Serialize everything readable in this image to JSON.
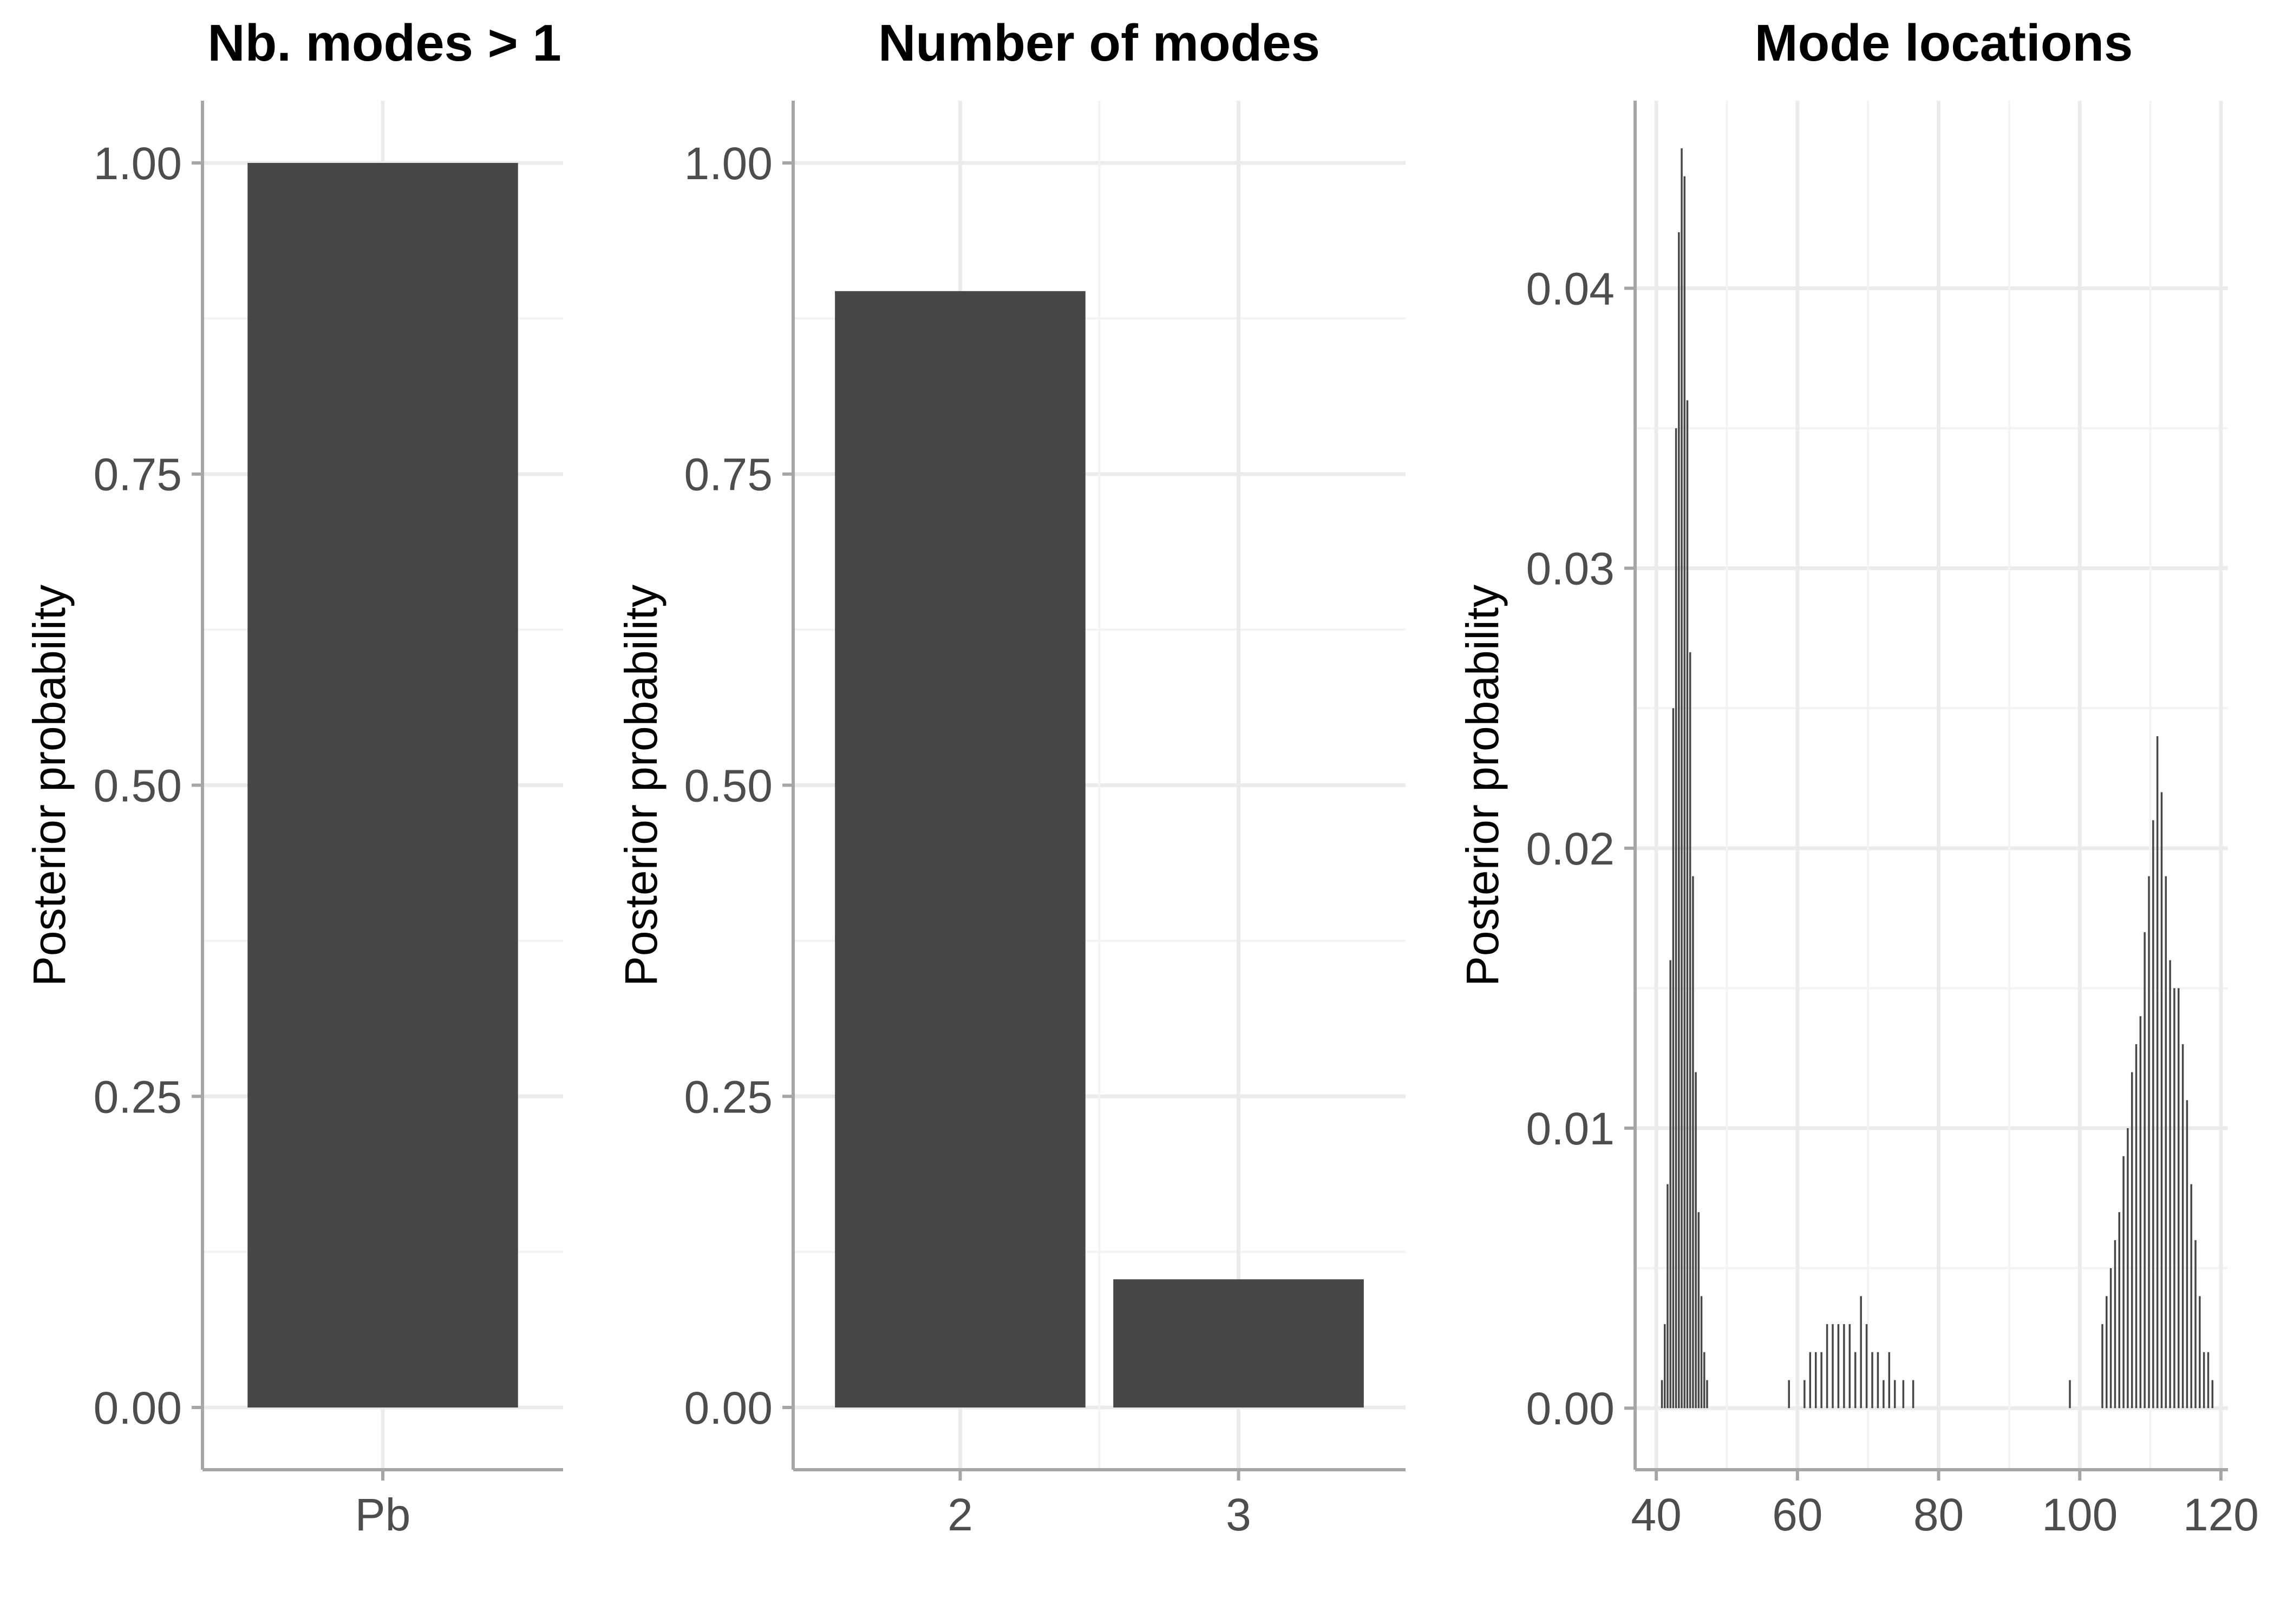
{
  "chart_data": [
    {
      "type": "bar",
      "title": "Nb. modes > 1",
      "ylabel": "Posterior probability",
      "xlabel": "",
      "categories": [
        "Pb"
      ],
      "values": [
        1.0
      ],
      "ylim": [
        -0.05,
        1.05
      ],
      "y_ticks": [
        0,
        0.25,
        0.5,
        0.75,
        1
      ],
      "y_tick_labels": [
        "0.00",
        "0.25",
        "0.50",
        "0.75",
        "1.00"
      ],
      "grid": true,
      "bar_color": "#474747"
    },
    {
      "type": "bar",
      "title": "Number of modes",
      "ylabel": "Posterior probability",
      "xlabel": "",
      "categories": [
        "2",
        "3"
      ],
      "values": [
        0.897,
        0.103
      ],
      "ylim": [
        -0.05,
        1.05
      ],
      "y_ticks": [
        0,
        0.25,
        0.5,
        0.75,
        1
      ],
      "y_tick_labels": [
        "0.00",
        "0.25",
        "0.50",
        "0.75",
        "1.00"
      ],
      "grid": true,
      "bar_color": "#474747"
    },
    {
      "type": "bar",
      "title": "Mode locations",
      "ylabel": "Posterior probability",
      "xlabel": "",
      "xlim": [
        37,
        121
      ],
      "ylim": [
        -0.0022,
        0.0467
      ],
      "x_ticks": [
        40,
        60,
        80,
        100,
        120
      ],
      "x_tick_labels": [
        "40",
        "60",
        "80",
        "100",
        "120"
      ],
      "y_ticks": [
        0,
        0.01,
        0.02,
        0.03,
        0.04
      ],
      "y_tick_labels": [
        "0.00",
        "0.01",
        "0.02",
        "0.03",
        "0.04"
      ],
      "grid": true,
      "bar_color": "#474747",
      "x": [
        40.8,
        41.2,
        41.6,
        42.0,
        42.4,
        42.8,
        43.2,
        43.6,
        44.0,
        44.4,
        44.8,
        45.2,
        45.6,
        46.0,
        46.4,
        46.8,
        47.2,
        58.8,
        61.0,
        61.8,
        62.6,
        63.4,
        64.2,
        65.0,
        65.8,
        66.6,
        67.4,
        68.2,
        69.0,
        69.8,
        70.6,
        71.4,
        72.2,
        73.0,
        73.8,
        75.0,
        76.4,
        98.6,
        103.2,
        103.8,
        104.4,
        105.0,
        105.6,
        106.2,
        106.8,
        107.4,
        108.0,
        108.6,
        109.2,
        109.8,
        110.4,
        111.0,
        111.6,
        112.2,
        112.8,
        113.4,
        114.0,
        114.6,
        115.2,
        115.8,
        116.4,
        117.0,
        117.6,
        118.2,
        118.8
      ],
      "values": [
        0.001,
        0.003,
        0.008,
        0.016,
        0.025,
        0.035,
        0.042,
        0.045,
        0.044,
        0.036,
        0.027,
        0.019,
        0.012,
        0.007,
        0.004,
        0.002,
        0.001,
        0.001,
        0.001,
        0.002,
        0.002,
        0.002,
        0.003,
        0.003,
        0.003,
        0.003,
        0.003,
        0.002,
        0.004,
        0.003,
        0.002,
        0.002,
        0.001,
        0.002,
        0.001,
        0.001,
        0.001,
        0.001,
        0.003,
        0.004,
        0.005,
        0.006,
        0.007,
        0.009,
        0.01,
        0.012,
        0.013,
        0.014,
        0.017,
        0.019,
        0.021,
        0.024,
        0.022,
        0.019,
        0.016,
        0.015,
        0.015,
        0.013,
        0.011,
        0.008,
        0.006,
        0.004,
        0.002,
        0.002,
        0.001
      ]
    }
  ]
}
